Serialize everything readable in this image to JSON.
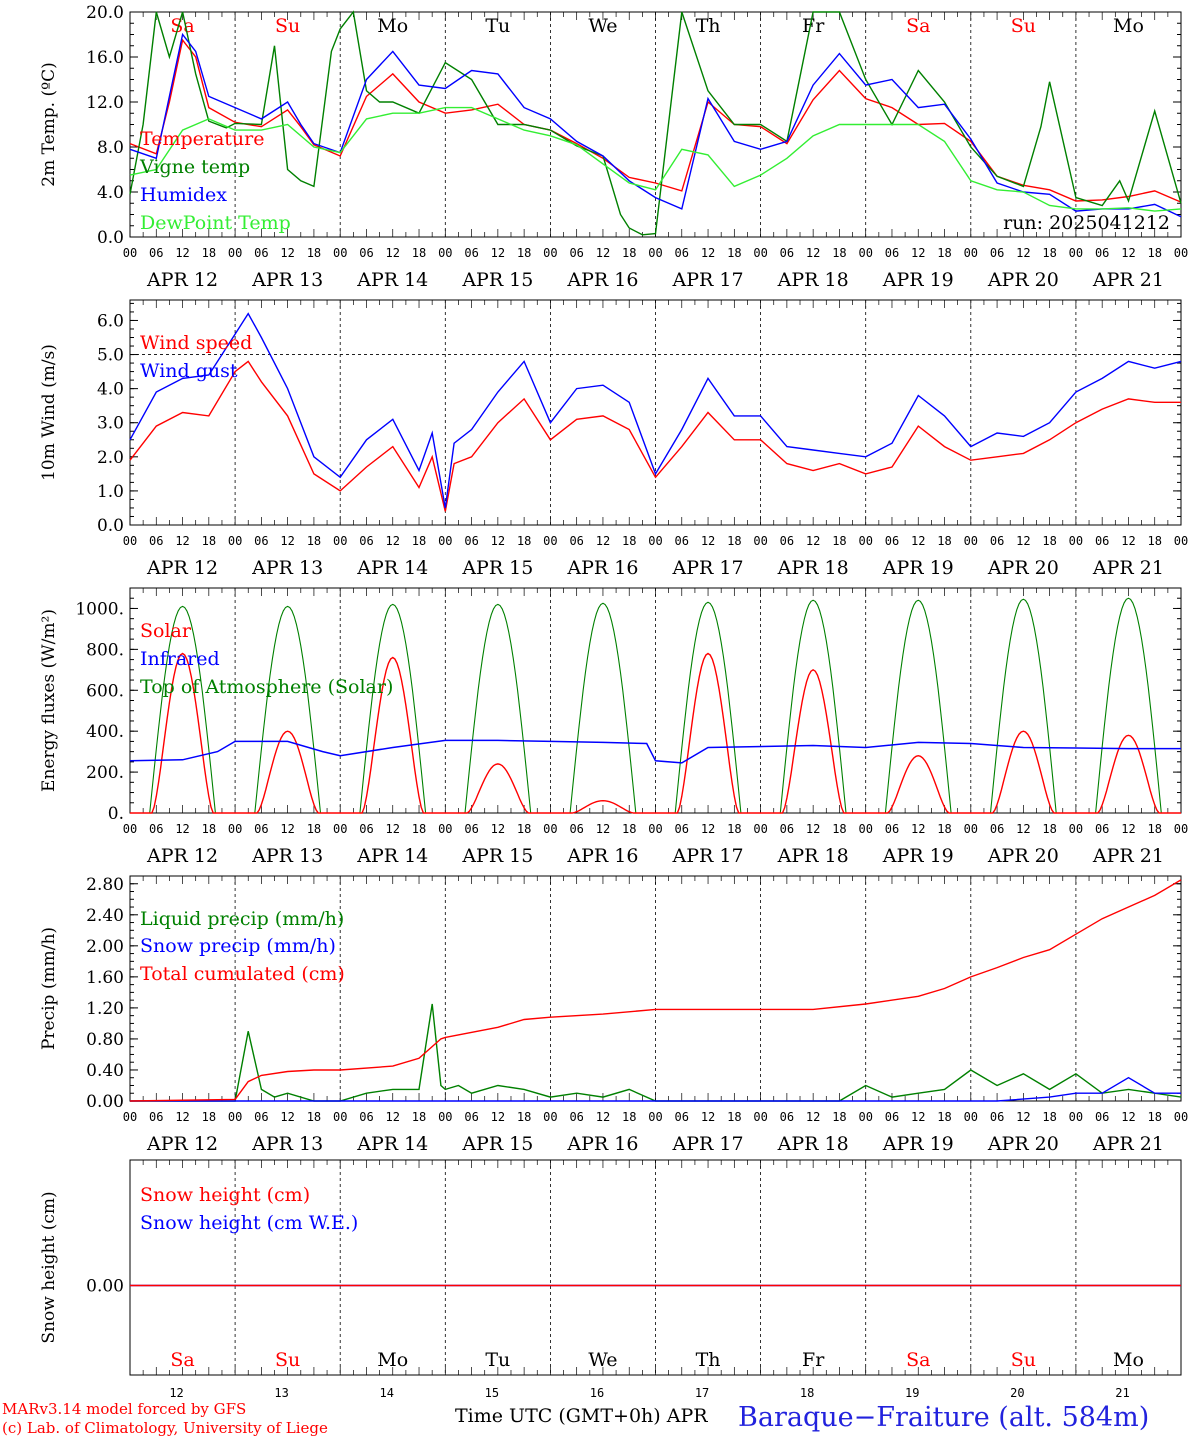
{
  "colors": {
    "red": "#ff0000",
    "blue": "#0000ff",
    "green": "#008000",
    "lightgreen": "#33ee33",
    "black": "#000000"
  },
  "weekdays": [
    "Sa",
    "Su",
    "Mo",
    "Tu",
    "We",
    "Th",
    "Fr",
    "Sa",
    "Su",
    "Mo"
  ],
  "weekday_colors": [
    "red",
    "red",
    "black",
    "black",
    "black",
    "black",
    "black",
    "red",
    "red",
    "black"
  ],
  "days": [
    "APR 12",
    "APR 13",
    "APR 14",
    "APR 15",
    "APR 16",
    "APR 17",
    "APR 18",
    "APR 19",
    "APR 20",
    "APR 21"
  ],
  "bottom_days": [
    "12",
    "13",
    "14",
    "15",
    "16",
    "17",
    "18",
    "19",
    "20",
    "21"
  ],
  "hour_labels": [
    "00",
    "06",
    "12",
    "18"
  ],
  "run_label": "run: 2025041212",
  "footer": {
    "model": "MARv3.14 model forced by GFS",
    "credit": "(c) Lab. of Climatology, University of Liege",
    "xlabel": "Time UTC (GMT+0h)",
    "month": "APR",
    "station": "Baraque−Fraiture (alt. 584m)"
  },
  "chart_data": [
    {
      "type": "line",
      "id": "temp",
      "ylabel": "2m Temp. (ºC)",
      "ylim": [
        0,
        20
      ],
      "yticks": [
        "0.0",
        "4.0",
        "8.0",
        "12.0",
        "16.0",
        "20.0"
      ],
      "x_unit": "hours since APR 12 00 UTC",
      "series": [
        {
          "name": "Temperature",
          "color": "red",
          "x": [
            0,
            6,
            9,
            12,
            15,
            18,
            24,
            30,
            36,
            39,
            42,
            48,
            54,
            60,
            66,
            72,
            78,
            84,
            90,
            96,
            102,
            108,
            114,
            120,
            126,
            132,
            138,
            144,
            150,
            156,
            162,
            168,
            174,
            180,
            186,
            192,
            198,
            204,
            210,
            216,
            222,
            228,
            234,
            240
          ],
          "y": [
            8.3,
            7.4,
            12,
            17.5,
            16,
            11.5,
            10.2,
            9.8,
            11.3,
            9.8,
            8.2,
            7.2,
            12.5,
            14.5,
            12,
            11,
            11.3,
            11.8,
            10,
            9.5,
            8.3,
            7,
            5.3,
            4.8,
            4.1,
            12,
            10,
            9.8,
            8.3,
            12.2,
            14.8,
            12.3,
            11.5,
            10,
            10.1,
            8.5,
            5.4,
            4.6,
            4.2,
            3.2,
            3.3,
            3.6,
            4.1,
            3.1
          ]
        },
        {
          "name": "Vigne temp",
          "color": "green",
          "x": [
            0,
            3,
            6,
            9,
            12,
            15,
            18,
            22,
            24,
            30,
            33,
            36,
            39,
            42,
            46,
            48,
            51,
            54,
            57,
            60,
            66,
            72,
            78,
            84,
            90,
            96,
            102,
            108,
            112,
            114,
            117,
            120,
            126,
            132,
            138,
            144,
            150,
            156,
            162,
            168,
            174,
            180,
            186,
            192,
            198,
            204,
            208,
            210,
            216,
            222,
            226,
            228,
            234,
            240
          ],
          "y": [
            3.8,
            10,
            20,
            16,
            20,
            14.5,
            10.3,
            9.7,
            10.1,
            10,
            17,
            6,
            5,
            4.5,
            16.5,
            18.5,
            20,
            13,
            12,
            12,
            11,
            15.5,
            14,
            10,
            10,
            9.5,
            8.1,
            7.2,
            2,
            0.8,
            0.2,
            0.3,
            20,
            13,
            10,
            10,
            8.5,
            20,
            20,
            14,
            10,
            14.8,
            12,
            8,
            5.4,
            4.5,
            9.8,
            13.8,
            3.5,
            2.8,
            5,
            3.2,
            11.2,
            3
          ]
        },
        {
          "name": "Humidex",
          "color": "blue",
          "x": [
            0,
            6,
            9,
            12,
            15,
            18,
            24,
            30,
            36,
            39,
            42,
            48,
            54,
            60,
            66,
            72,
            78,
            84,
            90,
            96,
            102,
            108,
            114,
            120,
            126,
            132,
            138,
            144,
            150,
            156,
            162,
            168,
            174,
            180,
            186,
            192,
            198,
            204,
            210,
            216,
            222,
            228,
            234,
            240
          ],
          "y": [
            7.8,
            7,
            12.5,
            18,
            16.5,
            12.5,
            11.5,
            10.5,
            12,
            10,
            8.3,
            7.5,
            14,
            16.5,
            13.5,
            13.2,
            14.8,
            14.5,
            11.5,
            10.5,
            8.5,
            7.2,
            5,
            3.5,
            2.5,
            12.3,
            8.5,
            7.8,
            8.5,
            13.5,
            16.3,
            13.5,
            14,
            11.5,
            11.8,
            8.7,
            4.8,
            4,
            3.8,
            2.3,
            2.5,
            2.5,
            2.9,
            1.8
          ]
        },
        {
          "name": "DewPoint Temp",
          "color": "lightgreen",
          "x": [
            0,
            6,
            12,
            18,
            24,
            30,
            36,
            42,
            48,
            54,
            60,
            66,
            72,
            78,
            84,
            90,
            96,
            102,
            108,
            114,
            120,
            126,
            132,
            138,
            144,
            150,
            156,
            162,
            168,
            174,
            180,
            186,
            192,
            198,
            204,
            210,
            216,
            222,
            228,
            234,
            240
          ],
          "y": [
            5.5,
            6,
            9.5,
            10.5,
            9.5,
            9.5,
            10,
            8,
            7.5,
            10.5,
            11,
            11,
            11.5,
            11.5,
            10.5,
            9.5,
            9,
            8.2,
            6.5,
            4.8,
            4.2,
            7.8,
            7.3,
            4.5,
            5.5,
            7,
            9,
            10,
            10,
            10,
            10,
            8.5,
            5,
            4.2,
            4,
            2.8,
            2.5,
            2.5,
            2.6,
            2.3,
            2.5
          ]
        }
      ]
    },
    {
      "type": "line",
      "id": "wind",
      "ylabel": "10m Wind (m/s)",
      "ylim": [
        0,
        6.6
      ],
      "ref_line": 5.0,
      "yticks": [
        "0.0",
        "1.0",
        "2.0",
        "3.0",
        "4.0",
        "5.0",
        "6.0"
      ],
      "series": [
        {
          "name": "Wind speed",
          "color": "red",
          "x": [
            0,
            6,
            12,
            18,
            24,
            27,
            30,
            36,
            42,
            48,
            54,
            60,
            66,
            69,
            72,
            74,
            78,
            84,
            90,
            96,
            102,
            108,
            114,
            120,
            126,
            132,
            138,
            144,
            150,
            156,
            162,
            168,
            174,
            180,
            186,
            192,
            198,
            204,
            210,
            216,
            222,
            228,
            234,
            240
          ],
          "y": [
            1.9,
            2.9,
            3.3,
            3.2,
            4.5,
            4.8,
            4.2,
            3.2,
            1.5,
            1,
            1.7,
            2.3,
            1.1,
            2,
            0.4,
            1.8,
            2,
            3,
            3.7,
            2.5,
            3.1,
            3.2,
            2.8,
            1.4,
            2.3,
            3.3,
            2.5,
            2.5,
            1.8,
            1.6,
            1.8,
            1.5,
            1.7,
            2.9,
            2.3,
            1.9,
            2,
            2.1,
            2.5,
            3,
            3.4,
            3.7,
            3.6,
            3.6
          ]
        },
        {
          "name": "Wind gust",
          "color": "blue",
          "x": [
            0,
            6,
            12,
            18,
            24,
            27,
            30,
            36,
            42,
            48,
            54,
            60,
            66,
            69,
            72,
            74,
            78,
            84,
            90,
            96,
            102,
            108,
            114,
            120,
            126,
            132,
            138,
            144,
            150,
            156,
            162,
            168,
            174,
            180,
            186,
            192,
            198,
            204,
            210,
            216,
            222,
            228,
            234,
            240
          ],
          "y": [
            2.5,
            3.9,
            4.3,
            4.4,
            5.6,
            6.2,
            5.5,
            4,
            2,
            1.4,
            2.5,
            3.1,
            1.6,
            2.7,
            0.5,
            2.4,
            2.8,
            3.9,
            4.8,
            3,
            4,
            4.1,
            3.6,
            1.5,
            2.8,
            4.3,
            3.2,
            3.2,
            2.3,
            2.2,
            2.1,
            2,
            2.4,
            3.8,
            3.2,
            2.3,
            2.7,
            2.6,
            3,
            3.9,
            4.3,
            4.8,
            4.6,
            4.8
          ]
        }
      ]
    },
    {
      "type": "line",
      "id": "energy",
      "ylabel": "Energy fluxes (W/m²)",
      "ylim": [
        0,
        1100
      ],
      "yticks": [
        "0.",
        "200.",
        "400.",
        "600.",
        "800.",
        "1000."
      ],
      "series": [
        {
          "name": "Solar",
          "color": "red",
          "peak_x": [
            12,
            36,
            60,
            84,
            108,
            132,
            156,
            180,
            204,
            228
          ],
          "peak_y": [
            780,
            400,
            760,
            240,
            60,
            780,
            700,
            280,
            400,
            380
          ]
        },
        {
          "name": "Infrared",
          "color": "blue",
          "x": [
            0,
            12,
            20,
            24,
            36,
            44,
            48,
            60,
            72,
            84,
            96,
            108,
            118,
            120,
            126,
            132,
            156,
            168,
            180,
            192,
            204,
            216,
            228,
            240
          ],
          "y": [
            255,
            260,
            300,
            350,
            350,
            300,
            280,
            320,
            355,
            355,
            350,
            345,
            340,
            255,
            245,
            320,
            330,
            320,
            345,
            340,
            320,
            318,
            315,
            315
          ]
        },
        {
          "name": "Top of Atmosphere (Solar)",
          "color": "green",
          "day_centers": [
            12,
            36,
            60,
            84,
            108,
            132,
            156,
            180,
            204,
            228
          ],
          "peak": [
            1010,
            1010,
            1020,
            1020,
            1025,
            1030,
            1040,
            1040,
            1045,
            1050
          ]
        }
      ]
    },
    {
      "type": "line",
      "id": "precip",
      "ylabel": "Precip (mm/h)",
      "ylim": [
        0,
        2.9
      ],
      "yticks": [
        "0.00",
        "0.40",
        "0.80",
        "1.20",
        "1.60",
        "2.00",
        "2.40",
        "2.80"
      ],
      "series": [
        {
          "name": "Liquid precip (mm/h)",
          "color": "green",
          "x": [
            0,
            18,
            24,
            27,
            30,
            33,
            36,
            42,
            48,
            54,
            60,
            66,
            69,
            71,
            72,
            75,
            78,
            84,
            90,
            96,
            102,
            108,
            114,
            120,
            132,
            150,
            162,
            168,
            174,
            180,
            186,
            192,
            198,
            204,
            210,
            216,
            222,
            228,
            234,
            240
          ],
          "y": [
            0,
            0,
            0,
            0.9,
            0.15,
            0.05,
            0.1,
            0,
            0,
            0.1,
            0.15,
            0.15,
            1.25,
            0.2,
            0.15,
            0.2,
            0.1,
            0.2,
            0.15,
            0.05,
            0.1,
            0.05,
            0.15,
            0,
            0,
            0,
            0,
            0.2,
            0.05,
            0.1,
            0.15,
            0.4,
            0.2,
            0.35,
            0.15,
            0.35,
            0.1,
            0.15,
            0.1,
            0.05
          ]
        },
        {
          "name": "Snow precip (mm/h)",
          "color": "blue",
          "x": [
            0,
            198,
            210,
            216,
            222,
            228,
            234,
            240
          ],
          "y": [
            0,
            0,
            0.05,
            0.1,
            0.1,
            0.3,
            0.1,
            0.1
          ]
        },
        {
          "name": "Total cumulated (cm)",
          "color": "red",
          "x": [
            0,
            24,
            27,
            30,
            36,
            42,
            48,
            60,
            66,
            71,
            72,
            84,
            90,
            96,
            108,
            120,
            132,
            156,
            168,
            180,
            186,
            192,
            198,
            204,
            210,
            216,
            222,
            228,
            234,
            240
          ],
          "y": [
            0,
            0.02,
            0.25,
            0.33,
            0.38,
            0.4,
            0.4,
            0.45,
            0.55,
            0.8,
            0.82,
            0.95,
            1.05,
            1.08,
            1.12,
            1.18,
            1.18,
            1.18,
            1.25,
            1.35,
            1.45,
            1.6,
            1.72,
            1.85,
            1.95,
            2.15,
            2.35,
            2.5,
            2.65,
            2.85
          ]
        }
      ]
    },
    {
      "type": "line",
      "id": "snow",
      "ylabel": "Snow height (cm)",
      "ytick": "0.00",
      "series": [
        {
          "name": "Snow height (cm)",
          "color": "red",
          "x": [
            0,
            240
          ],
          "y": [
            0,
            0
          ]
        },
        {
          "name": "Snow height (cm W.E.)",
          "color": "blue",
          "x": [
            0,
            240
          ],
          "y": [
            0,
            0
          ]
        }
      ]
    }
  ]
}
